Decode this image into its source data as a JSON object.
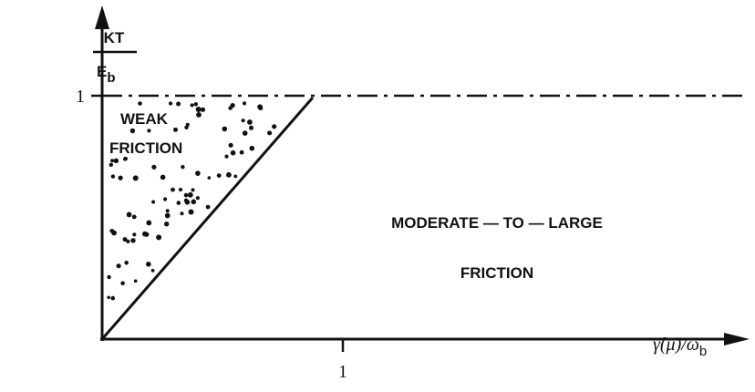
{
  "y_axis": {
    "label_numerator": "KT",
    "label_denominator": "E",
    "label_denominator_subscript": "b",
    "tick": "1"
  },
  "x_axis": {
    "label": "γ̂(μ̃)/ω",
    "label_subscript": "b",
    "tick": "1"
  },
  "regions": [
    {
      "lines": [
        "WEAK",
        "FRICTION"
      ]
    },
    {
      "lines": [
        "MODERATE — TO — LARGE",
        "FRICTION"
      ]
    }
  ]
}
